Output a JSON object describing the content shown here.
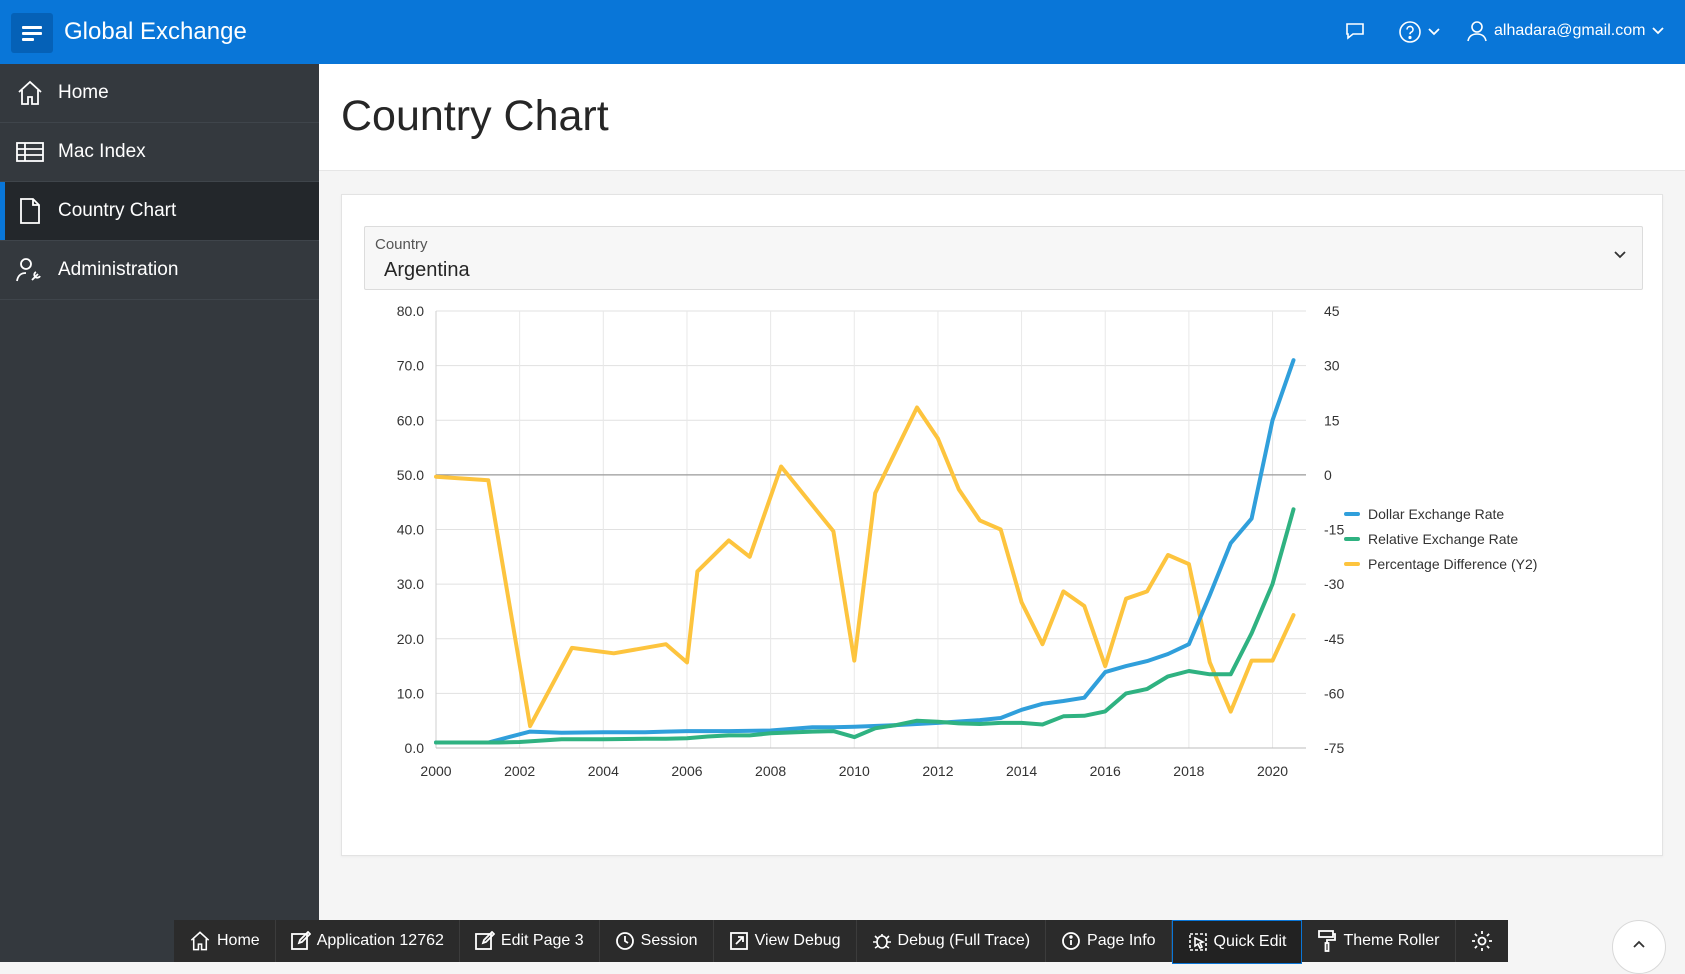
{
  "header": {
    "app_title": "Global Exchange",
    "user": "alhadara@gmail.com",
    "icons": [
      "menu-icon",
      "chat-icon",
      "help-icon",
      "user-icon"
    ]
  },
  "sidebar": {
    "items": [
      {
        "label": "Home",
        "icon": "home-icon"
      },
      {
        "label": "Mac Index",
        "icon": "table-icon"
      },
      {
        "label": "Country Chart",
        "icon": "document-icon",
        "active": true
      },
      {
        "label": "Administration",
        "icon": "user-wrench-icon"
      }
    ]
  },
  "main": {
    "page_title": "Country Chart",
    "country_select": {
      "label": "Country",
      "value": "Argentina"
    }
  },
  "colors": {
    "brand": "#0976d8",
    "dollar": "#309fdb",
    "relative": "#2fb281",
    "percentage": "#fdc43e"
  },
  "chart_data": {
    "type": "line",
    "y_ticks": [
      "80.0",
      "70.0",
      "60.0",
      "50.0",
      "40.0",
      "30.0",
      "20.0",
      "10.0",
      "0.0"
    ],
    "y2_ticks": [
      "45",
      "30",
      "15",
      "0",
      "-15",
      "-30",
      "-45",
      "-60",
      "-75"
    ],
    "x_ticks": [
      "2000",
      "2002",
      "2004",
      "2006",
      "2008",
      "2010",
      "2012",
      "2014",
      "2016",
      "2018",
      "2020"
    ],
    "xlim": [
      2000,
      2020.8
    ],
    "ylim": [
      0,
      80
    ],
    "y2lim": [
      -75,
      45
    ],
    "grid": true,
    "legend_position": "right",
    "series": [
      {
        "name": "Dollar Exchange Rate",
        "axis": "y",
        "x": [
          2000,
          2000.5,
          2001.25,
          2002.25,
          2003,
          2004,
          2005,
          2005.5,
          2006,
          2006.5,
          2007,
          2008,
          2009,
          2009.5,
          2010,
          2011,
          2012,
          2013,
          2013.5,
          2014,
          2014.5,
          2015,
          2015.5,
          2016,
          2016.5,
          2017,
          2017.5,
          2018,
          2018.5,
          2019,
          2019.5,
          2020,
          2020.5
        ],
        "values": [
          1,
          1,
          1,
          3,
          2.8,
          2.9,
          2.9,
          3,
          3.1,
          3.1,
          3.1,
          3.2,
          3.8,
          3.8,
          3.9,
          4.2,
          4.6,
          5.1,
          5.5,
          7,
          8.1,
          8.6,
          9.2,
          13.9,
          15,
          15.9,
          17.2,
          19,
          28,
          37.5,
          42,
          60,
          71
        ]
      },
      {
        "name": "Relative Exchange Rate",
        "axis": "y",
        "x": [
          2000,
          2000.5,
          2001,
          2001.5,
          2002,
          2003,
          2004,
          2005,
          2005.5,
          2006,
          2006.5,
          2007,
          2007.5,
          2008,
          2009,
          2009.5,
          2010,
          2010.5,
          2011,
          2011.5,
          2012,
          2012.5,
          2013,
          2013.5,
          2014,
          2014.5,
          2015,
          2015.5,
          2016,
          2016.5,
          2017,
          2017.5,
          2018,
          2018.5,
          2019,
          2019.5,
          2020,
          2020.5
        ],
        "values": [
          1,
          1,
          1,
          1,
          1.1,
          1.6,
          1.6,
          1.7,
          1.7,
          1.8,
          2.1,
          2.3,
          2.3,
          2.7,
          3,
          3.1,
          2,
          3.6,
          4.2,
          5,
          4.8,
          4.5,
          4.4,
          4.6,
          4.6,
          4.3,
          5.8,
          5.9,
          6.7,
          10,
          10.8,
          13.1,
          14.1,
          13.5,
          13.5,
          21,
          30,
          43.7
        ]
      },
      {
        "name": "Percentage Difference (Y2)",
        "axis": "y2",
        "x": [
          2000,
          2001.25,
          2002.25,
          2003.25,
          2004.25,
          2005.5,
          2006,
          2006.25,
          2007,
          2007.5,
          2008.25,
          2009.5,
          2010,
          2010.5,
          2011.5,
          2012,
          2012.5,
          2013,
          2013.5,
          2014,
          2014.5,
          2015,
          2015.5,
          2016,
          2016.5,
          2017,
          2017.5,
          2018,
          2018.5,
          2019,
          2019.5,
          2020,
          2020.5
        ],
        "values": [
          -0.5,
          -1.5,
          -69,
          -47.5,
          -49,
          -46.5,
          -51.5,
          -26.5,
          -18,
          -22.5,
          2.3,
          -15.5,
          -51,
          -5,
          18.5,
          10,
          -4,
          -12.5,
          -15,
          -35,
          -46.5,
          -32,
          -36,
          -52.5,
          -34,
          -32,
          -22,
          -24.5,
          -51.5,
          -65,
          -51,
          -51,
          -38.5
        ]
      }
    ]
  },
  "devbar": {
    "items": [
      {
        "label": "Home",
        "icon": "home-icon"
      },
      {
        "label": "Application 12762",
        "icon": "edit-icon"
      },
      {
        "label": "Edit Page 3",
        "icon": "edit-icon"
      },
      {
        "label": "Session",
        "icon": "clock-icon"
      },
      {
        "label": "View Debug",
        "icon": "external-link-icon"
      },
      {
        "label": "Debug (Full Trace)",
        "icon": "bug-icon"
      },
      {
        "label": "Page Info",
        "icon": "info-icon"
      },
      {
        "label": "Quick Edit",
        "icon": "cursor-select-icon",
        "active": true
      },
      {
        "label": "Theme Roller",
        "icon": "paint-roller-icon"
      }
    ],
    "settings_icon": "gear-icon",
    "scroll_top_icon": "chevron-up-icon"
  }
}
